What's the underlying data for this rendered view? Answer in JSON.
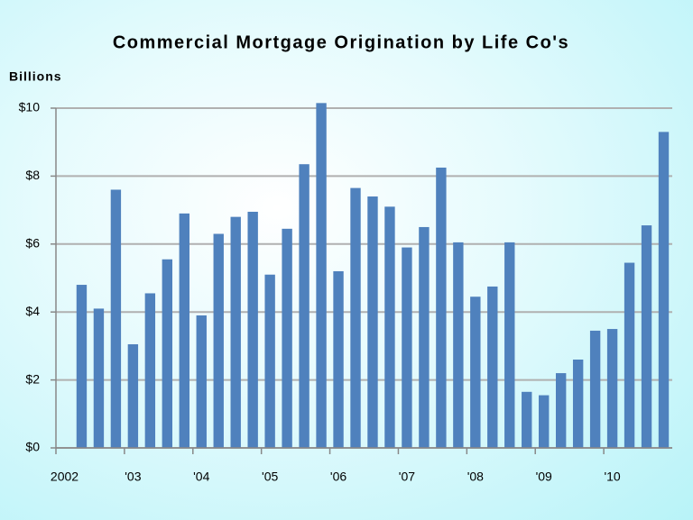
{
  "chart_data": {
    "type": "bar",
    "title": "Commercial Mortgage Origination by Life Co's",
    "y_label": "Billions",
    "categories": [
      "2002",
      null,
      null,
      null,
      "'03",
      null,
      null,
      null,
      "'04",
      null,
      null,
      null,
      "'05",
      null,
      null,
      null,
      "'06",
      null,
      null,
      null,
      "'07",
      null,
      null,
      null,
      "'08",
      null,
      null,
      null,
      "'09",
      null,
      null,
      null,
      "'10",
      null,
      null,
      null
    ],
    "values": [
      null,
      4.8,
      4.1,
      7.6,
      3.05,
      4.55,
      5.55,
      6.9,
      3.9,
      6.3,
      6.8,
      6.95,
      5.1,
      6.45,
      8.35,
      10.15,
      5.2,
      7.65,
      7.4,
      7.1,
      5.9,
      6.5,
      8.25,
      6.05,
      4.45,
      4.75,
      6.05,
      1.65,
      1.55,
      2.2,
      2.6,
      3.45,
      3.5,
      5.45,
      6.55,
      9.3
    ],
    "color": "#4f81bd",
    "ylim": [
      0,
      10
    ],
    "yticks": [
      {
        "value": 0,
        "label": "$0"
      },
      {
        "value": 2,
        "label": "$2"
      },
      {
        "value": 4,
        "label": "$4"
      },
      {
        "value": 6,
        "label": "$6"
      },
      {
        "value": 8,
        "label": "$8"
      },
      {
        "value": 10,
        "label": "$10"
      }
    ],
    "grid": true
  }
}
